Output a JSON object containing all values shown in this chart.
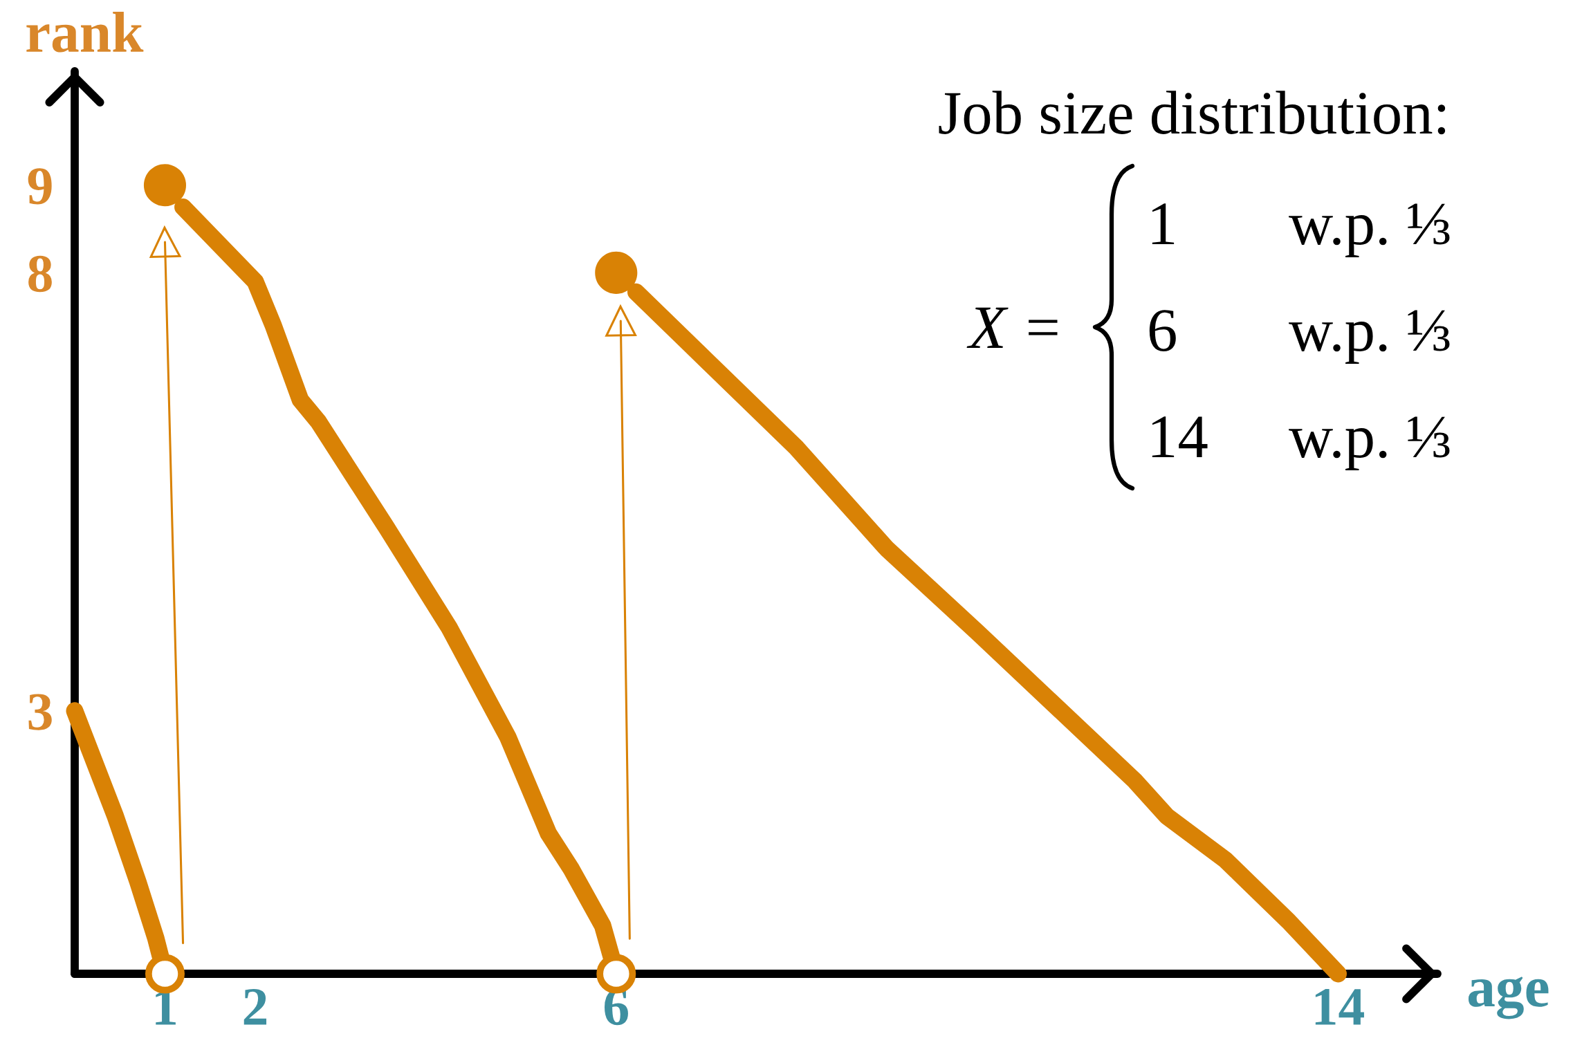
{
  "chart_data": {
    "type": "line",
    "xlabel": "age",
    "ylabel": "rank",
    "xlim": [
      0,
      15.1
    ],
    "ylim": [
      0,
      10.3
    ],
    "xticks": [
      1,
      2,
      6,
      14
    ],
    "yticks": [
      3,
      8,
      9
    ],
    "grid": false,
    "line_style": "solid",
    "annotations": [
      "Job size distribution:",
      "X =",
      "1",
      "w.p. ⅓",
      "6",
      "w.p. ⅓",
      "14",
      "w.p. ⅓"
    ],
    "series": [
      {
        "color": "#d98205",
        "x": [
          0,
          0.45,
          0.7,
          0.9,
          1
        ],
        "values": [
          3,
          1.8,
          1.05,
          0.4,
          0
        ]
      },
      {
        "color": "#d98205",
        "x": [
          1.2,
          2,
          2.2,
          2.5,
          2.7,
          3.45,
          4.15,
          4.8,
          5.25,
          5.5,
          5.85,
          6
        ],
        "values": [
          8.75,
          7.9,
          7.4,
          6.55,
          6.3,
          5.1,
          3.95,
          2.7,
          1.6,
          1.2,
          0.55,
          0
        ]
      },
      {
        "color": "#d98205",
        "x": [
          6.22,
          8,
          9,
          10,
          11.75,
          12.1,
          12.75,
          13.45,
          14
        ],
        "values": [
          7.78,
          6,
          4.85,
          3.9,
          2.2,
          1.8,
          1.3,
          0.6,
          0
        ]
      },
      {
        "color": "#d98205",
        "marker": "triangle",
        "x": [
          1.2,
          1
        ],
        "values": [
          0.35,
          8.35
        ]
      },
      {
        "color": "#d98205",
        "marker": "triangle",
        "x": [
          6.15,
          6.05
        ],
        "values": [
          0.4,
          7.45
        ]
      },
      {
        "type": "scatter",
        "color": "#d98205",
        "marker": "circle",
        "x": [
          1,
          6
        ],
        "values": [
          9,
          8
        ]
      },
      {
        "type": "scatter",
        "color": "#d98205",
        "marker": "open circle",
        "x": [
          1,
          6
        ],
        "values": [
          0,
          0
        ]
      }
    ]
  }
}
